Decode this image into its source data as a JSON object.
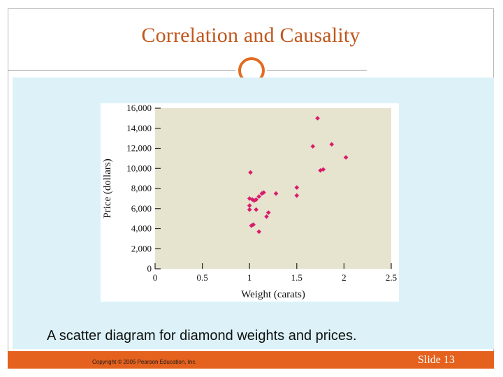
{
  "slide": {
    "title": "Correlation and Causality",
    "caption": "A scatter diagram for diamond weights and prices.",
    "copyright": "Copyright © 2005 Pearson Education, Inc.",
    "slide_number": "Slide 13"
  },
  "colors": {
    "title": "#c0581e",
    "accent": "#e36c20",
    "footer": "#e4611e",
    "panel": "#dcf2f8",
    "plot_area": "#e6e3cf",
    "points": "#d81b6a"
  },
  "chart_data": {
    "type": "scatter",
    "title": "",
    "xlabel": "Weight (carats)",
    "ylabel": "Price (dollars)",
    "xlim": [
      0,
      2.5
    ],
    "ylim": [
      0,
      16000
    ],
    "x_ticks": [
      "0",
      "0.5",
      "1",
      "1.5",
      "2",
      "2.5"
    ],
    "y_ticks": [
      "0",
      "2,000",
      "4,000",
      "6,000",
      "8,000",
      "10,000",
      "12,000",
      "14,000",
      "16,000"
    ],
    "grid": false,
    "legend": "none",
    "series": [
      {
        "points": [
          [
            1.0,
            5900
          ],
          [
            1.0,
            6300
          ],
          [
            1.0,
            7000
          ],
          [
            1.02,
            4300
          ],
          [
            1.03,
            6900
          ],
          [
            1.05,
            6800
          ],
          [
            1.04,
            4400
          ],
          [
            1.07,
            6900
          ],
          [
            1.07,
            5900
          ],
          [
            1.1,
            7200
          ],
          [
            1.1,
            3700
          ],
          [
            1.13,
            7500
          ],
          [
            1.15,
            7600
          ],
          [
            1.18,
            5200
          ],
          [
            1.2,
            5600
          ],
          [
            1.28,
            7500
          ],
          [
            1.5,
            7300
          ],
          [
            1.5,
            8100
          ],
          [
            1.67,
            12200
          ],
          [
            1.72,
            15000
          ],
          [
            1.75,
            9800
          ],
          [
            1.78,
            9900
          ],
          [
            1.87,
            12400
          ],
          [
            2.02,
            11100
          ],
          [
            1.01,
            9600
          ]
        ]
      }
    ]
  }
}
